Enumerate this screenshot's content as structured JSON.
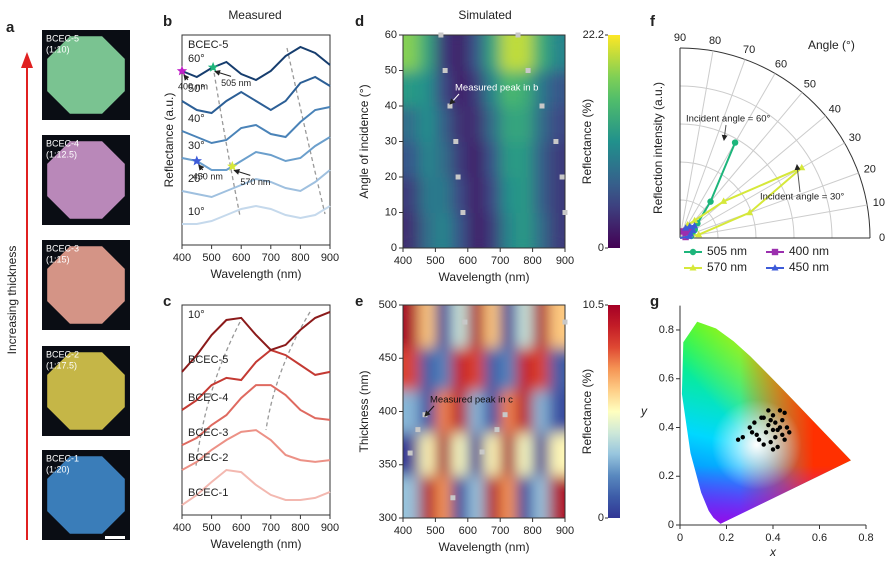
{
  "panel_a": {
    "letter": "a",
    "axis_label": "Increasing thickness",
    "samples": [
      {
        "name": "BCEC-5",
        "ratio": "(1:10)",
        "color": "#84d39c"
      },
      {
        "name": "BCEC-4",
        "ratio": "(1:12.5)",
        "color": "#c993c8"
      },
      {
        "name": "BCEC-3",
        "ratio": "(1:15)",
        "color": "#e6a090"
      },
      {
        "name": "BCEC-2",
        "ratio": "(1:17.5)",
        "color": "#d6c44c"
      },
      {
        "name": "BCEC-1",
        "ratio": "(1:20)",
        "color": "#3f87c8"
      }
    ]
  },
  "chart_data": [
    {
      "panel": "b",
      "header": "Measured",
      "type": "line",
      "sample": "BCEC-5",
      "x": [
        400,
        450,
        500,
        550,
        600,
        650,
        700,
        750,
        800,
        850,
        900
      ],
      "xlim": [
        400,
        900
      ],
      "xticks": [
        400,
        500,
        600,
        700,
        800,
        900
      ],
      "ylim": [
        0,
        7
      ],
      "xlabel": "Wavelength (nm)",
      "ylabel": "Reflectance (a.u.)",
      "series": [
        {
          "name": "10°",
          "color": "#c5d9ec",
          "values": [
            0.7,
            0.7,
            0.8,
            1.0,
            1.2,
            1.3,
            1.2,
            1.0,
            0.9,
            1.0,
            1.3
          ]
        },
        {
          "name": "20°",
          "color": "#9fc0df",
          "values": [
            1.8,
            1.7,
            1.6,
            1.8,
            2.0,
            2.2,
            2.1,
            1.9,
            1.8,
            2.1,
            2.5
          ]
        },
        {
          "name": "30°",
          "color": "#6b9fcc",
          "values": [
            2.9,
            2.8,
            2.5,
            2.5,
            2.8,
            3.1,
            3.0,
            2.8,
            2.9,
            3.3,
            3.6
          ],
          "markers": [
            {
              "label": "450 nm",
              "x": 450,
              "color": "#3d5bd8"
            },
            {
              "label": "570 nm",
              "x": 570,
              "color": "#d6e83a"
            }
          ]
        },
        {
          "name": "40°",
          "color": "#4a83b8",
          "values": [
            3.8,
            3.6,
            3.4,
            3.5,
            3.9,
            4.0,
            3.7,
            3.6,
            4.1,
            4.5,
            4.6
          ]
        },
        {
          "name": "50°",
          "color": "#2c5f96",
          "values": [
            4.8,
            4.5,
            4.4,
            4.8,
            5.1,
            4.8,
            4.5,
            4.8,
            5.4,
            5.6,
            5.3
          ]
        },
        {
          "name": "60°",
          "color": "#163d6e",
          "values": [
            5.8,
            5.6,
            5.9,
            6.1,
            5.7,
            5.5,
            5.8,
            6.3,
            6.6,
            6.4,
            6.0
          ],
          "markers": [
            {
              "label": "400 nm",
              "x": 400,
              "color": "#c020c8"
            },
            {
              "label": "505 nm",
              "x": 505,
              "color": "#1db57b"
            }
          ]
        }
      ]
    },
    {
      "panel": "c",
      "type": "line",
      "sample": "10°",
      "x": [
        400,
        450,
        500,
        550,
        600,
        650,
        700,
        750,
        800,
        850,
        900
      ],
      "xlim": [
        400,
        900
      ],
      "xticks": [
        400,
        500,
        600,
        700,
        800,
        900
      ],
      "ylim": [
        0,
        7
      ],
      "xlabel": "Wavelength (nm)",
      "series": [
        {
          "name": "BCEC-1",
          "color": "#f3b8b0",
          "values": [
            0.33,
            0.67,
            1.1,
            1.5,
            1.43,
            1.0,
            0.67,
            0.5,
            0.5,
            0.57,
            0.77
          ]
        },
        {
          "name": "BCEC-2",
          "color": "#ec9186",
          "values": [
            1.5,
            1.77,
            2.17,
            2.5,
            2.77,
            2.83,
            2.5,
            2.0,
            1.83,
            1.77,
            1.83
          ]
        },
        {
          "name": "BCEC-3",
          "color": "#df6a60",
          "values": [
            2.33,
            2.57,
            3.0,
            3.33,
            3.9,
            4.33,
            4.33,
            4.0,
            3.5,
            3.23,
            3.17
          ]
        },
        {
          "name": "BCEC-4",
          "color": "#c43a33",
          "values": [
            3.5,
            3.83,
            4.33,
            4.57,
            4.5,
            5.1,
            5.5,
            5.33,
            5.0,
            4.67,
            4.77
          ]
        },
        {
          "name": "BCEC-5",
          "color": "#8b1a1a",
          "values": [
            4.77,
            5.33,
            6.0,
            6.5,
            6.57,
            6.0,
            5.5,
            5.67,
            6.17,
            6.57,
            6.77
          ]
        }
      ]
    },
    {
      "panel": "d",
      "header": "Simulated",
      "type": "heatmap",
      "colormap": "viridis",
      "x": [
        425,
        475,
        525,
        575,
        625,
        675,
        725,
        775,
        825,
        875
      ],
      "y": [
        5,
        15,
        25,
        35,
        45,
        55
      ],
      "z": [
        [
          3,
          8,
          10,
          6,
          2,
          4,
          10,
          12,
          8,
          4
        ],
        [
          4,
          9,
          9,
          5,
          2,
          5,
          11,
          12,
          7,
          4
        ],
        [
          6,
          10,
          8,
          4,
          2,
          6,
          12,
          12,
          7,
          4
        ],
        [
          8,
          11,
          7,
          3,
          3,
          8,
          13,
          13,
          8,
          5
        ],
        [
          12,
          11,
          5,
          2,
          4,
          10,
          15,
          14,
          9,
          6
        ],
        [
          18,
          13,
          4,
          2,
          6,
          13,
          20,
          20,
          14,
          10
        ]
      ],
      "xlim": [
        400,
        900
      ],
      "xticks": [
        400,
        500,
        600,
        700,
        800,
        900
      ],
      "ylim": [
        0,
        60
      ],
      "yticks": [
        0,
        10,
        20,
        30,
        40,
        50,
        60
      ],
      "zlim": [
        0,
        22.2
      ],
      "zticks": [
        0,
        22.2
      ],
      "xlabel": "Wavelength (nm)",
      "ylabel": "Angle of incidence (°)",
      "zlabel": "Reflectance (%)",
      "points": {
        "annotation": "Measured peak in b",
        "color": "#c8c8c8",
        "x": [
          517,
          530,
          545,
          563,
          570,
          585,
          755,
          786,
          829,
          872,
          891,
          900
        ],
        "y": [
          60,
          50,
          40,
          30,
          20,
          10,
          60,
          50,
          40,
          30,
          20,
          10
        ]
      }
    },
    {
      "panel": "e",
      "type": "heatmap",
      "colormap": "RdYlBu_r",
      "x": [
        425,
        475,
        525,
        575,
        625,
        675,
        725,
        775,
        825,
        875
      ],
      "y": [
        320,
        360,
        400,
        440,
        480
      ],
      "z": [
        [
          3.15,
          10.1,
          7.35,
          0.42,
          3.15,
          10.1,
          7.35,
          0.42,
          3.15,
          10.1
        ],
        [
          0.0,
          5.4,
          10.5,
          5.1,
          0.0,
          5.4,
          10.5,
          5.1,
          0.0,
          5.4
        ],
        [
          2.9,
          0.6,
          7.6,
          9.9,
          2.9,
          0.6,
          7.6,
          9.9,
          2.9,
          0.6
        ],
        [
          8.5,
          1.1,
          2.0,
          9.4,
          8.5,
          1.1,
          2.0,
          9.4,
          8.5,
          1.1
        ],
        [
          10.4,
          6.4,
          0.1,
          4.1,
          10.4,
          6.4,
          0.1,
          4.1,
          10.4,
          6.4
        ]
      ],
      "xlim": [
        400,
        900
      ],
      "xticks": [
        400,
        500,
        600,
        700,
        800,
        900
      ],
      "ylim": [
        300,
        500
      ],
      "yticks": [
        300,
        350,
        400,
        450,
        500
      ],
      "zlim": [
        0,
        10.5
      ],
      "zticks": [
        0,
        10.5
      ],
      "xlabel": "Wavelength (nm)",
      "ylabel": "Thickness (nm)",
      "zlabel": "Reflectance (%)",
      "points": {
        "annotation": "Measured peak in c",
        "color": "#c8c8c8",
        "x": [
          422,
          446,
          468,
          554,
          591,
          644,
          690,
          715,
          900
        ],
        "y": [
          361,
          383,
          397,
          319,
          484,
          362,
          383,
          397,
          484
        ]
      }
    },
    {
      "panel": "f",
      "type": "polar",
      "thetalim": [
        0,
        90
      ],
      "thetaticks": [
        0,
        10,
        20,
        30,
        40,
        50,
        60,
        70,
        80,
        90
      ],
      "rlim": [
        0,
        1
      ],
      "rticks": [
        0.2,
        0.4,
        0.6,
        0.8,
        1
      ],
      "thetalabel": "Angle (°)",
      "rlabel": "Reflection intensity (a.u.)",
      "theta": [
        10,
        20,
        30,
        40,
        50,
        60
      ],
      "series": [
        {
          "name": "505 nm",
          "color": "#1db57b",
          "marker": "circle",
          "values": [
            0.06,
            0.07,
            0.09,
            0.12,
            0.25,
            0.58
          ]
        },
        {
          "name": "400 nm",
          "color": "#9b2fae",
          "marker": "square",
          "values": [
            0.03,
            0.04,
            0.05,
            0.06,
            0.05,
            0.04
          ]
        },
        {
          "name": "570 nm",
          "color": "#d6e83a",
          "marker": "triangle",
          "values": [
            0.1,
            0.39,
            0.74,
            0.3,
            0.12,
            0.08
          ]
        },
        {
          "name": "450 nm",
          "color": "#3d5bd8",
          "marker": "triangle",
          "values": [
            0.05,
            0.06,
            0.08,
            0.1,
            0.08,
            0.06
          ]
        }
      ],
      "annotations": [
        "Incident angle = 60°",
        "Incident angle = 30°"
      ]
    },
    {
      "panel": "g",
      "type": "scatter",
      "color": "#000000",
      "x": [
        0.25,
        0.27,
        0.3,
        0.31,
        0.32,
        0.33,
        0.34,
        0.35,
        0.36,
        0.37,
        0.38,
        0.38,
        0.39,
        0.39,
        0.4,
        0.4,
        0.41,
        0.41,
        0.42,
        0.42,
        0.43,
        0.43,
        0.44,
        0.44,
        0.45,
        0.45,
        0.46,
        0.47,
        0.36,
        0.4
      ],
      "y": [
        0.35,
        0.36,
        0.4,
        0.38,
        0.42,
        0.37,
        0.35,
        0.44,
        0.33,
        0.38,
        0.47,
        0.41,
        0.34,
        0.43,
        0.31,
        0.45,
        0.42,
        0.36,
        0.39,
        0.32,
        0.47,
        0.4,
        0.37,
        0.43,
        0.35,
        0.46,
        0.4,
        0.38,
        0.44,
        0.39
      ],
      "xlim": [
        0,
        0.8
      ],
      "xticks": [
        0,
        0.2,
        0.4,
        0.6,
        0.8
      ],
      "ylim": [
        0,
        0.9
      ],
      "yticks": [
        0,
        0.2,
        0.4,
        0.6,
        0.8
      ],
      "xlabel": "x",
      "ylabel": "y"
    }
  ]
}
